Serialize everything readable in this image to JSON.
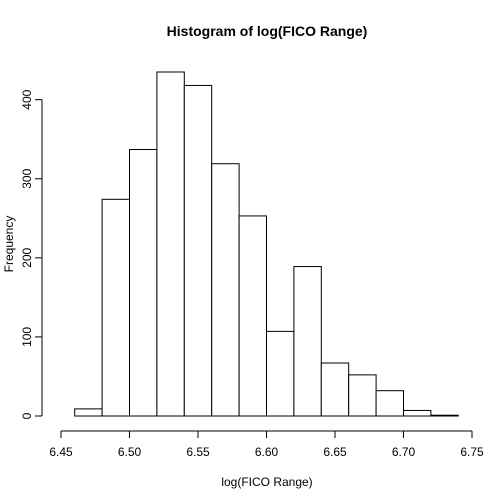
{
  "chart_data": {
    "type": "bar",
    "title": "Histogram of log(FICO Range)",
    "xlabel": "log(FICO Range)",
    "ylabel": "Frequency",
    "bins": [
      {
        "start": 6.46,
        "end": 6.48,
        "count": 9
      },
      {
        "start": 6.48,
        "end": 6.5,
        "count": 274
      },
      {
        "start": 6.5,
        "end": 6.52,
        "count": 337
      },
      {
        "start": 6.52,
        "end": 6.54,
        "count": 435
      },
      {
        "start": 6.54,
        "end": 6.56,
        "count": 418
      },
      {
        "start": 6.56,
        "end": 6.58,
        "count": 319
      },
      {
        "start": 6.58,
        "end": 6.6,
        "count": 253
      },
      {
        "start": 6.6,
        "end": 6.62,
        "count": 107
      },
      {
        "start": 6.62,
        "end": 6.64,
        "count": 189
      },
      {
        "start": 6.64,
        "end": 6.66,
        "count": 67
      },
      {
        "start": 6.66,
        "end": 6.68,
        "count": 52
      },
      {
        "start": 6.68,
        "end": 6.7,
        "count": 32
      },
      {
        "start": 6.7,
        "end": 6.72,
        "count": 7
      },
      {
        "start": 6.72,
        "end": 6.74,
        "count": 1
      }
    ],
    "xlim": [
      6.45,
      6.75
    ],
    "ylim": [
      0,
      435
    ],
    "xticks": [
      "6.45",
      "6.50",
      "6.55",
      "6.60",
      "6.65",
      "6.70",
      "6.75"
    ],
    "yticks": [
      "0",
      "100",
      "200",
      "300",
      "400"
    ],
    "grid": false,
    "bar_fill": "#ffffff",
    "bar_stroke": "#000000"
  }
}
